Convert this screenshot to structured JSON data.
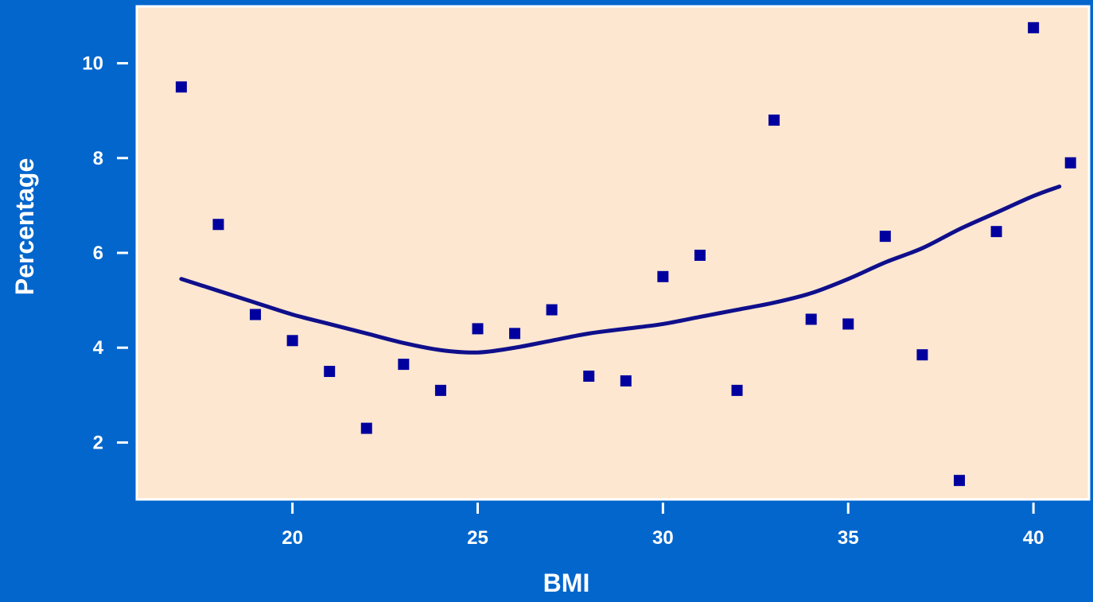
{
  "chart_data": {
    "type": "scatter",
    "title": "",
    "xlabel": "BMI",
    "ylabel": "Percentage",
    "xlim": [
      15.8,
      41.5
    ],
    "ylim": [
      0.8,
      11.2
    ],
    "x_ticks": [
      20,
      25,
      30,
      35,
      40
    ],
    "y_ticks": [
      2,
      4,
      6,
      8,
      10
    ],
    "grid": false,
    "colors": {
      "page_background": "#0266cc",
      "plot_background": "#fde7d0",
      "plot_border": "#ffffff",
      "points": "#00009f",
      "trend_line": "#0f0f8c",
      "text": "#ffffff"
    },
    "series": [
      {
        "type": "scatter",
        "x": [
          17,
          18,
          19,
          20,
          21,
          22,
          23,
          24,
          25,
          26,
          27,
          28,
          29,
          30,
          31,
          32,
          33,
          34,
          35,
          36,
          37,
          38,
          39,
          40,
          41
        ],
        "y": [
          9.5,
          6.6,
          4.7,
          4.15,
          3.5,
          2.3,
          3.65,
          3.1,
          4.4,
          4.3,
          4.8,
          3.4,
          3.3,
          5.5,
          5.95,
          3.1,
          8.8,
          4.6,
          4.5,
          6.35,
          3.85,
          1.2,
          6.45,
          10.75,
          7.9
        ]
      },
      {
        "type": "line",
        "x": [
          17,
          18,
          19,
          20,
          21,
          22,
          23,
          24,
          25,
          26,
          27,
          28,
          29,
          30,
          31,
          32,
          33,
          34,
          35,
          36,
          37,
          38,
          39,
          40,
          40.7
        ],
        "y": [
          5.45,
          5.2,
          4.95,
          4.7,
          4.5,
          4.3,
          4.1,
          3.95,
          3.9,
          4.0,
          4.15,
          4.3,
          4.4,
          4.5,
          4.65,
          4.8,
          4.95,
          5.15,
          5.45,
          5.8,
          6.1,
          6.5,
          6.85,
          7.2,
          7.4
        ]
      }
    ]
  }
}
